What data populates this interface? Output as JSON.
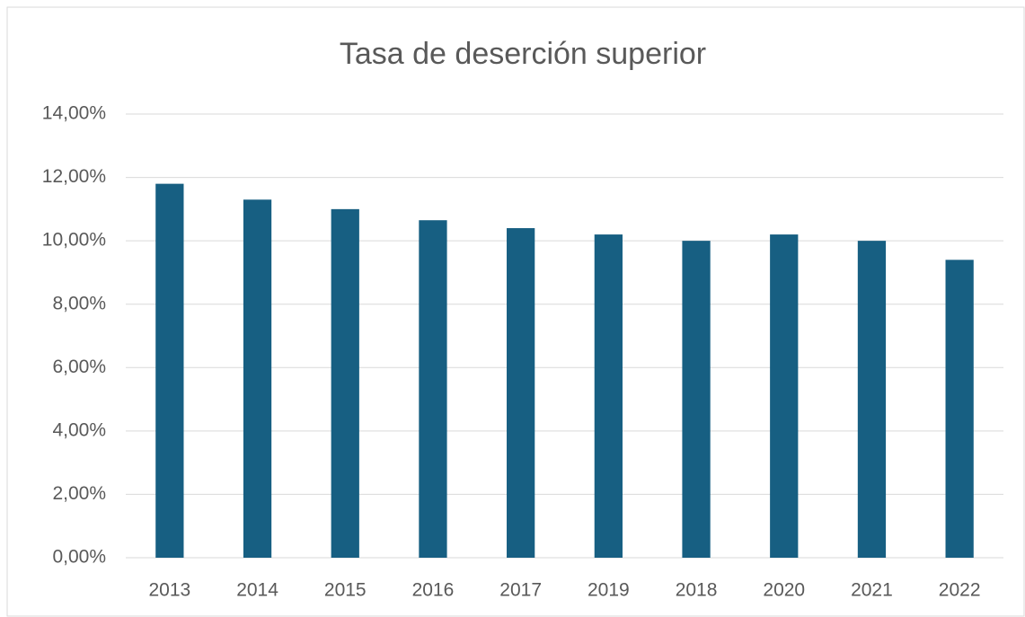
{
  "chart_data": {
    "type": "bar",
    "title": "Tasa de deserción superior",
    "categories": [
      "2013",
      "2014",
      "2015",
      "2016",
      "2017",
      "2019",
      "2018",
      "2020",
      "2021",
      "2022"
    ],
    "values": [
      11.8,
      11.3,
      11.0,
      10.65,
      10.4,
      10.2,
      10.0,
      10.2,
      10.0,
      9.4
    ],
    "color": "#175f82",
    "ylim": [
      0,
      14
    ],
    "yticks": [
      {
        "value": 0,
        "label": "0,00%"
      },
      {
        "value": 2,
        "label": "2,00%"
      },
      {
        "value": 4,
        "label": "4,00%"
      },
      {
        "value": 6,
        "label": "6,00%"
      },
      {
        "value": 8,
        "label": "8,00%"
      },
      {
        "value": 10,
        "label": "10,00%"
      },
      {
        "value": 12,
        "label": "12,00%"
      },
      {
        "value": 14,
        "label": "14,00%"
      }
    ],
    "grid": true
  }
}
